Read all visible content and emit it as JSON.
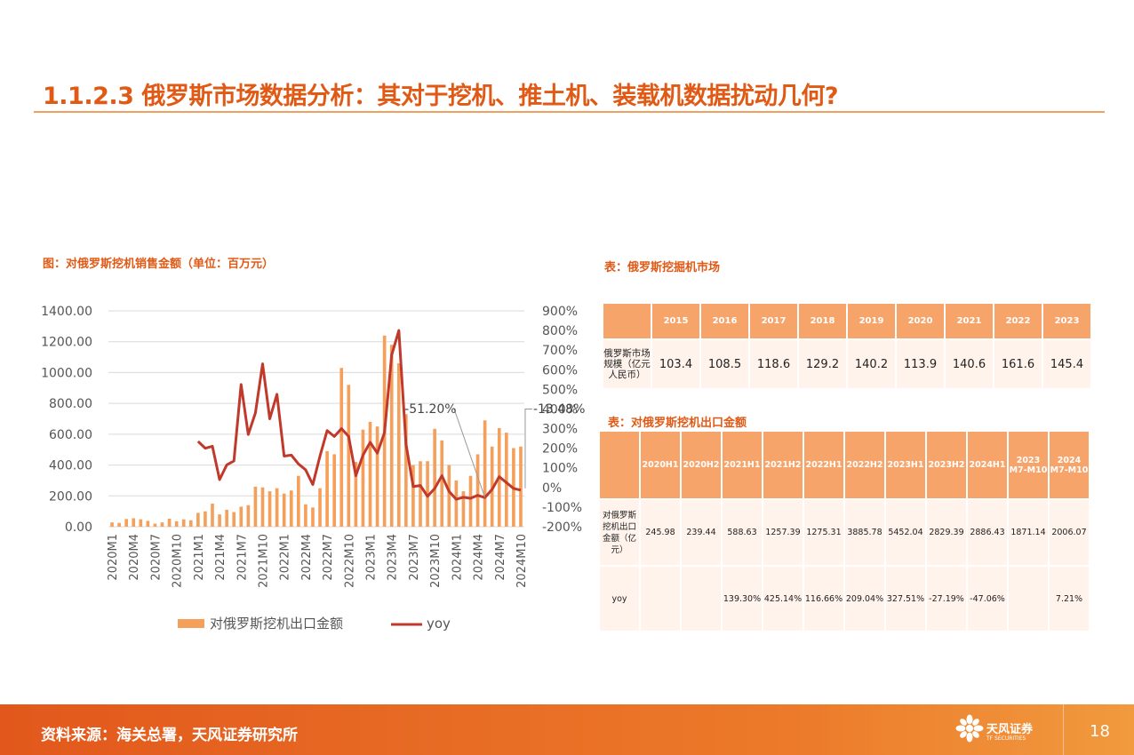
{
  "slide": {
    "title": "1.1.2.3 俄罗斯市场数据分析：其对于挖机、推土机、装载机数据扰动几何?",
    "source": "资料来源：海关总署，天风证券研究所",
    "page_number": "18",
    "logo_cn": "天风证券",
    "logo_en": "TF SECURITIES",
    "accent_color": "#e05a16",
    "table_header_color": "#f7a46b",
    "table_row_color": "#fff3ec"
  },
  "chart_caption": "图：对俄罗斯挖机销售金额（单位：百万元）",
  "table1": {
    "caption": "表：俄罗斯挖掘机市场",
    "header": [
      "",
      "2015",
      "2016",
      "2017",
      "2018",
      "2019",
      "2020",
      "2021",
      "2022",
      "2023"
    ],
    "row_label": "俄罗斯市场规模（亿元人民币）",
    "row_values": [
      "103.4",
      "108.5",
      "118.6",
      "129.2",
      "140.2",
      "113.9",
      "140.6",
      "161.6",
      "145.4"
    ]
  },
  "table2": {
    "caption": "表：对俄罗斯挖机出口金额",
    "header": [
      "",
      "2020H1",
      "2020H2",
      "2021H1",
      "2021H2",
      "2022H1",
      "2022H2",
      "2023H1",
      "2023H2",
      "2024H1",
      "2023 M7-M10",
      "2024 M7-M10"
    ],
    "row1_label": "对俄罗斯挖机出口金额（亿元）",
    "row1_values": [
      "245.98",
      "239.44",
      "588.63",
      "1257.39",
      "1275.31",
      "3885.78",
      "5452.04",
      "2829.39",
      "2886.43",
      "1871.14",
      "2006.07"
    ],
    "row2_label": "yoy",
    "row2_values": [
      "",
      "",
      "139.30%",
      "425.14%",
      "116.66%",
      "209.04%",
      "327.51%",
      "-27.19%",
      "-47.06%",
      "",
      "7.21%"
    ]
  },
  "chart_data": {
    "type": "bar+line",
    "bar_color": "#f5a05a",
    "line_color": "#c0392b",
    "x_tick_labels": [
      "2020M1",
      "2020M4",
      "2020M7",
      "2020M10",
      "2021M1",
      "2021M4",
      "2021M7",
      "2021M10",
      "2022M1",
      "2022M4",
      "2022M7",
      "2022M10",
      "2023M1",
      "2023M4",
      "2023M7",
      "2023M10",
      "2024M1",
      "2024M4",
      "2024M7",
      "2024M10"
    ],
    "y_left": {
      "min": 0,
      "max": 1400,
      "step": 200,
      "tick_labels": [
        "0.00",
        "200.00",
        "400.00",
        "600.00",
        "800.00",
        "1000.00",
        "1200.00",
        "1400.00"
      ]
    },
    "y_right": {
      "min": -200,
      "max": 900,
      "step": 100,
      "tick_labels": [
        "-200%",
        "-100%",
        "0%",
        "100%",
        "200%",
        "300%",
        "400%",
        "500%",
        "600%",
        "700%",
        "800%",
        "900%"
      ]
    },
    "annotations": [
      {
        "text": "-51.20%",
        "x": "2024M5",
        "y": -51.2
      },
      {
        "text": "-13.48%",
        "x": "2024M10",
        "y": -13.48
      }
    ],
    "series": [
      {
        "name": "对俄罗斯挖机出口金额",
        "axis": "left",
        "x": [
          "2020M1",
          "2020M2",
          "2020M3",
          "2020M4",
          "2020M5",
          "2020M6",
          "2020M7",
          "2020M8",
          "2020M9",
          "2020M10",
          "2020M11",
          "2020M12",
          "2021M1",
          "2021M2",
          "2021M3",
          "2021M4",
          "2021M5",
          "2021M6",
          "2021M7",
          "2021M8",
          "2021M9",
          "2021M10",
          "2021M11",
          "2021M12",
          "2022M1",
          "2022M2",
          "2022M3",
          "2022M4",
          "2022M5",
          "2022M6",
          "2022M7",
          "2022M8",
          "2022M9",
          "2022M10",
          "2022M11",
          "2022M12",
          "2023M1",
          "2023M2",
          "2023M3",
          "2023M4",
          "2023M5",
          "2023M6",
          "2023M7",
          "2023M8",
          "2023M9",
          "2023M10",
          "2023M11",
          "2023M12",
          "2024M1",
          "2024M2",
          "2024M3",
          "2024M4",
          "2024M5",
          "2024M6",
          "2024M7",
          "2024M8",
          "2024M9",
          "2024M10"
        ],
        "values": [
          28,
          25,
          50,
          55,
          48,
          38,
          20,
          28,
          52,
          35,
          48,
          42,
          90,
          100,
          150,
          80,
          110,
          95,
          130,
          140,
          260,
          255,
          230,
          250,
          215,
          235,
          330,
          145,
          125,
          250,
          490,
          470,
          1030,
          920,
          420,
          630,
          680,
          650,
          1240,
          1180,
          1060,
          730,
          400,
          425,
          425,
          635,
          560,
          400,
          300,
          230,
          330,
          470,
          690,
          520,
          640,
          610,
          510,
          520
        ]
      },
      {
        "name": "yoy",
        "axis": "right",
        "x": [
          "2021M1",
          "2021M2",
          "2021M3",
          "2021M4",
          "2021M5",
          "2021M6",
          "2021M7",
          "2021M8",
          "2021M9",
          "2021M10",
          "2021M11",
          "2021M12",
          "2022M1",
          "2022M2",
          "2022M3",
          "2022M4",
          "2022M5",
          "2022M6",
          "2022M7",
          "2022M8",
          "2022M9",
          "2022M10",
          "2022M11",
          "2022M12",
          "2023M1",
          "2023M2",
          "2023M3",
          "2023M4",
          "2023M5",
          "2023M6",
          "2023M7",
          "2023M8",
          "2023M9",
          "2023M10",
          "2023M11",
          "2023M12",
          "2024M1",
          "2024M2",
          "2024M3",
          "2024M4",
          "2024M5",
          "2024M6",
          "2024M7",
          "2024M8",
          "2024M9",
          "2024M10"
        ],
        "values": [
          235,
          200,
          210,
          40,
          115,
          135,
          525,
          270,
          380,
          630,
          350,
          475,
          160,
          165,
          120,
          90,
          15,
          160,
          290,
          260,
          300,
          260,
          60,
          165,
          230,
          175,
          280,
          675,
          800,
          220,
          5,
          10,
          -45,
          -5,
          60,
          -20,
          -60,
          -50,
          -55,
          -40,
          -51.2,
          -10,
          55,
          25,
          -5,
          -13.48
        ]
      }
    ]
  }
}
